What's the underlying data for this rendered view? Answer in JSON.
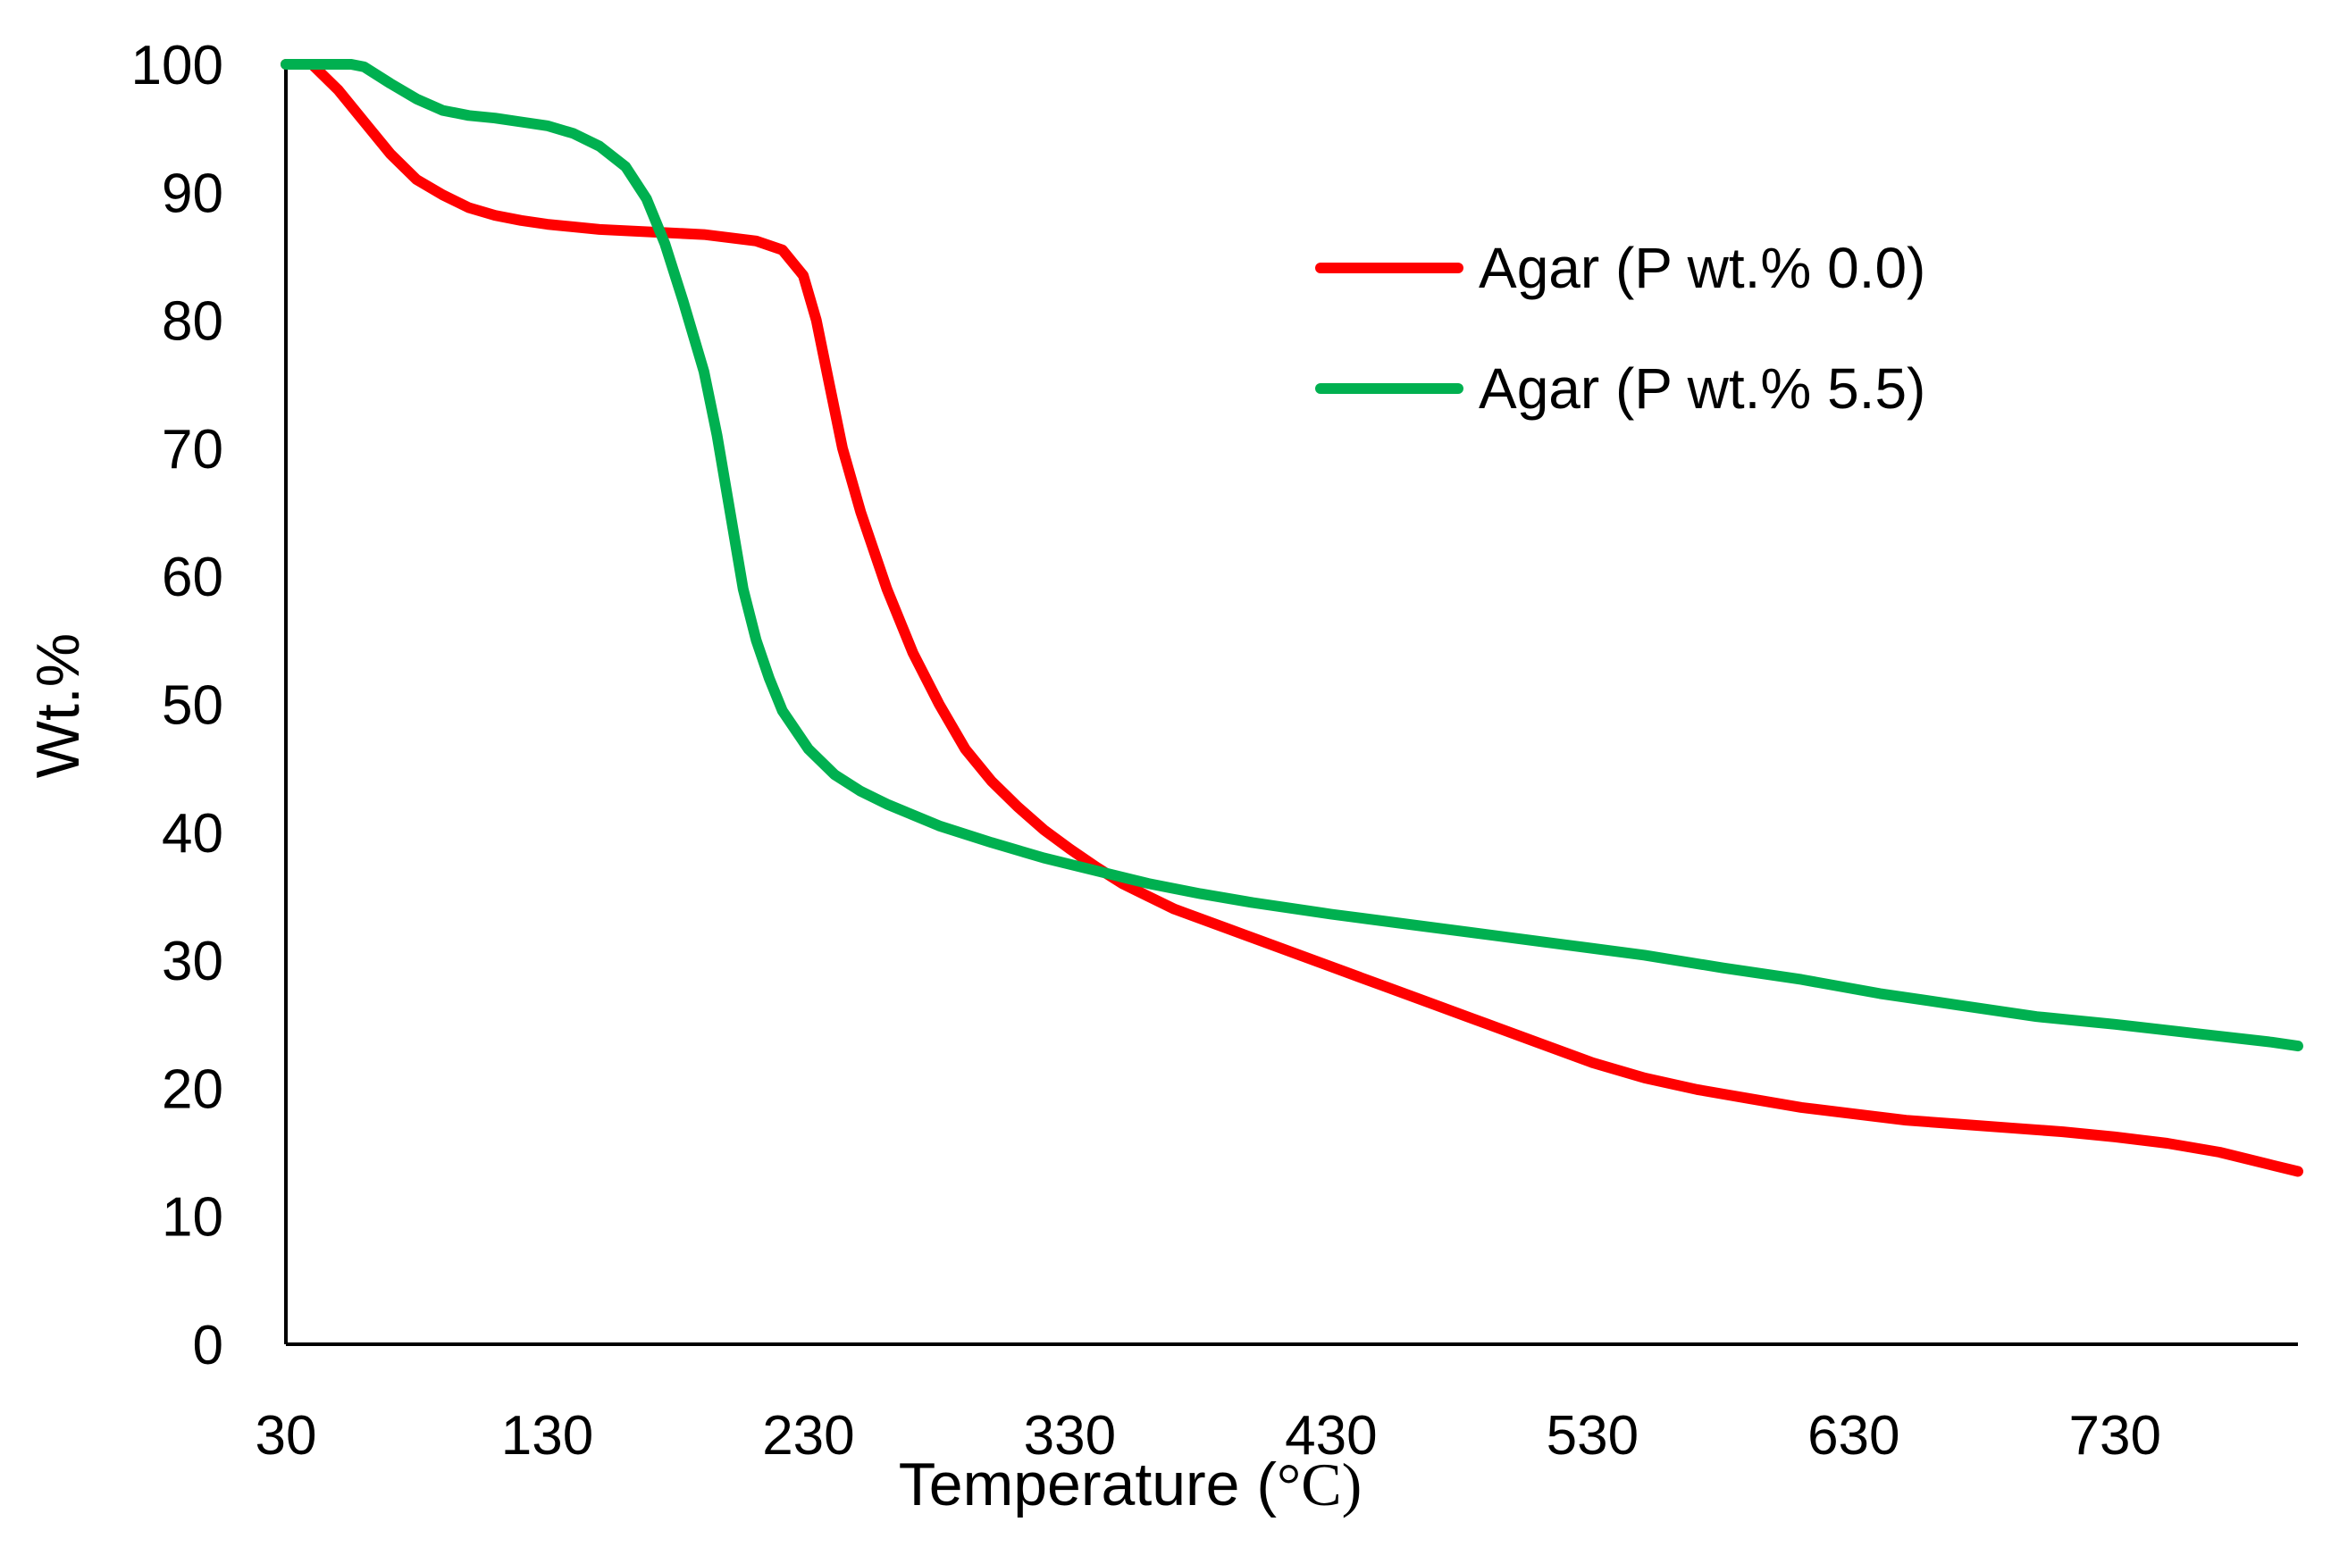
{
  "chart_data": {
    "type": "line",
    "xlabel": "Temperature (",
    "xlabel_unit": "°C)",
    "ylabel": "Wt.%",
    "xlim": [
      30,
      800
    ],
    "ylim": [
      0,
      100
    ],
    "x_ticks": [
      30,
      130,
      230,
      330,
      430,
      530,
      630,
      730
    ],
    "y_ticks": [
      0,
      10,
      20,
      30,
      40,
      50,
      60,
      70,
      80,
      90,
      100
    ],
    "grid": false,
    "legend_placement": "top-right",
    "series": [
      {
        "name": "Agar (P wt.% 0.0)",
        "color": "#ff0000",
        "points": [
          [
            30,
            100
          ],
          [
            40,
            100
          ],
          [
            50,
            98
          ],
          [
            60,
            95.5
          ],
          [
            70,
            93
          ],
          [
            80,
            91
          ],
          [
            90,
            89.8
          ],
          [
            100,
            88.8
          ],
          [
            110,
            88.2
          ],
          [
            120,
            87.8
          ],
          [
            130,
            87.5
          ],
          [
            150,
            87.1
          ],
          [
            170,
            86.9
          ],
          [
            190,
            86.7
          ],
          [
            210,
            86.2
          ],
          [
            220,
            85.5
          ],
          [
            228,
            83.5
          ],
          [
            233,
            80
          ],
          [
            238,
            75
          ],
          [
            243,
            70
          ],
          [
            250,
            65
          ],
          [
            260,
            59
          ],
          [
            270,
            54
          ],
          [
            280,
            50
          ],
          [
            290,
            46.5
          ],
          [
            300,
            44
          ],
          [
            310,
            42
          ],
          [
            320,
            40.2
          ],
          [
            330,
            38.7
          ],
          [
            340,
            37.3
          ],
          [
            350,
            36
          ],
          [
            360,
            35
          ],
          [
            370,
            34
          ],
          [
            390,
            32.5
          ],
          [
            410,
            31
          ],
          [
            430,
            29.5
          ],
          [
            450,
            28
          ],
          [
            470,
            26.5
          ],
          [
            490,
            25
          ],
          [
            510,
            23.5
          ],
          [
            530,
            22
          ],
          [
            550,
            20.8
          ],
          [
            570,
            19.9
          ],
          [
            590,
            19.2
          ],
          [
            610,
            18.5
          ],
          [
            630,
            18
          ],
          [
            650,
            17.5
          ],
          [
            670,
            17.2
          ],
          [
            690,
            16.9
          ],
          [
            710,
            16.6
          ],
          [
            730,
            16.2
          ],
          [
            750,
            15.7
          ],
          [
            770,
            15
          ],
          [
            790,
            14
          ],
          [
            800,
            13.5
          ]
        ]
      },
      {
        "name": "Agar (P wt.% 5.5)",
        "color": "#00b050",
        "points": [
          [
            30,
            100
          ],
          [
            55,
            100
          ],
          [
            60,
            99.8
          ],
          [
            70,
            98.5
          ],
          [
            80,
            97.3
          ],
          [
            90,
            96.4
          ],
          [
            100,
            96
          ],
          [
            110,
            95.8
          ],
          [
            120,
            95.5
          ],
          [
            130,
            95.2
          ],
          [
            140,
            94.6
          ],
          [
            150,
            93.6
          ],
          [
            160,
            92
          ],
          [
            168,
            89.5
          ],
          [
            175,
            86
          ],
          [
            182,
            81.5
          ],
          [
            190,
            76
          ],
          [
            195,
            71
          ],
          [
            200,
            65
          ],
          [
            205,
            59
          ],
          [
            210,
            55
          ],
          [
            215,
            52
          ],
          [
            220,
            49.5
          ],
          [
            230,
            46.5
          ],
          [
            240,
            44.5
          ],
          [
            250,
            43.2
          ],
          [
            260,
            42.2
          ],
          [
            280,
            40.5
          ],
          [
            300,
            39.2
          ],
          [
            320,
            38
          ],
          [
            340,
            37
          ],
          [
            360,
            36
          ],
          [
            380,
            35.2
          ],
          [
            400,
            34.5
          ],
          [
            430,
            33.6
          ],
          [
            460,
            32.8
          ],
          [
            490,
            32
          ],
          [
            520,
            31.2
          ],
          [
            550,
            30.4
          ],
          [
            580,
            29.4
          ],
          [
            610,
            28.5
          ],
          [
            640,
            27.4
          ],
          [
            670,
            26.5
          ],
          [
            700,
            25.6
          ],
          [
            730,
            25
          ],
          [
            760,
            24.3
          ],
          [
            790,
            23.6
          ],
          [
            800,
            23.3
          ]
        ]
      }
    ]
  }
}
